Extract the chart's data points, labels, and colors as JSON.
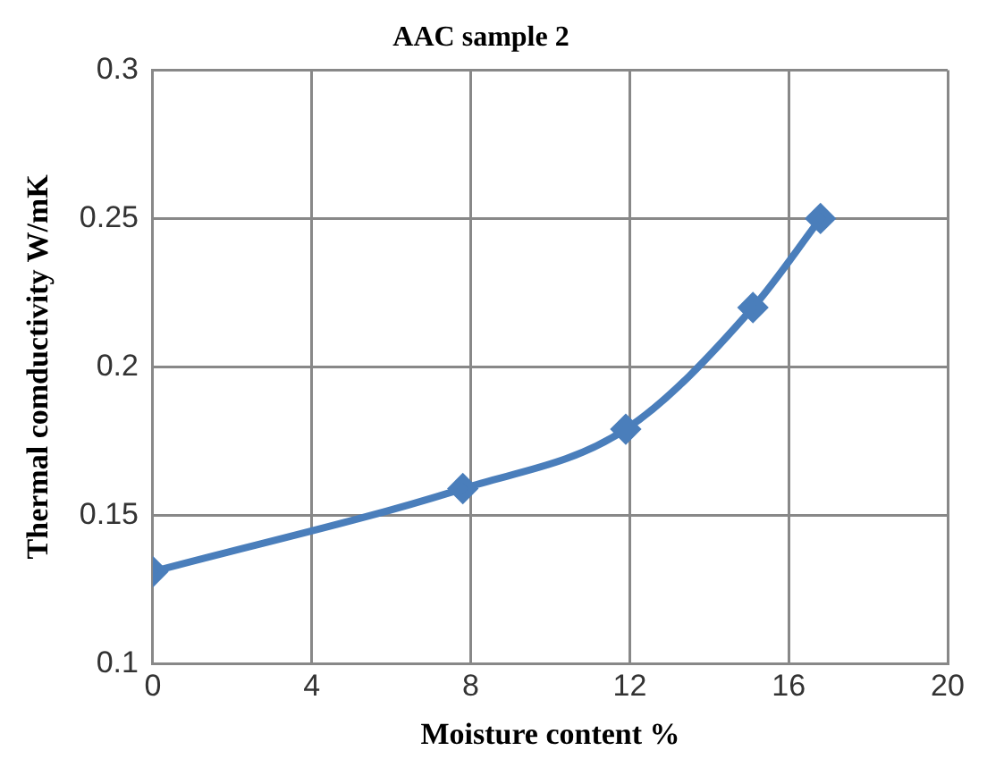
{
  "chart_data": {
    "type": "line",
    "title": "AAC sample 2",
    "xlabel": "Moisture content %",
    "ylabel": "Thermal comductivity W/mK",
    "x": [
      0,
      7.8,
      11.9,
      15.1,
      16.8
    ],
    "series": [
      {
        "color": "#4a7ebb",
        "values": [
          0.131,
          0.159,
          0.179,
          0.22,
          0.25
        ]
      }
    ],
    "xlim": [
      0,
      20
    ],
    "xticks": [
      0,
      4,
      8,
      12,
      16,
      20
    ],
    "ylim": [
      0.1,
      0.3
    ],
    "yticks": [
      0.1,
      0.15,
      0.2,
      0.25,
      0.3
    ],
    "grid": true,
    "legend": false,
    "marker": "diamond",
    "line_style": "solid"
  }
}
